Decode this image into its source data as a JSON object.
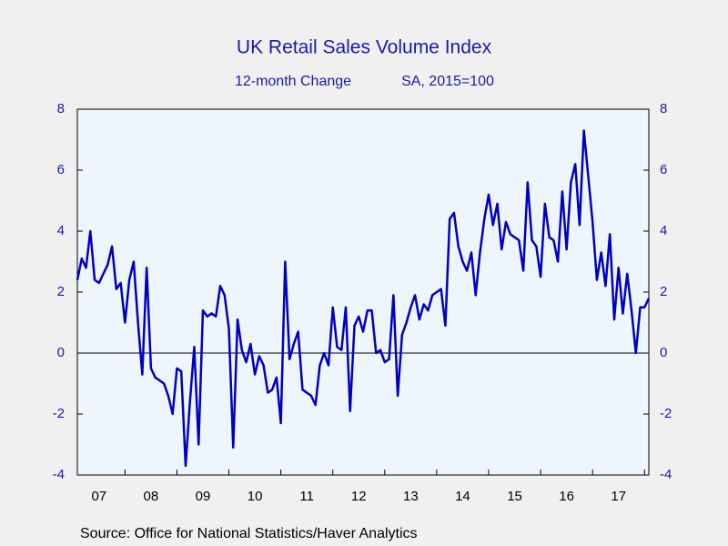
{
  "chart_data": {
    "type": "line",
    "title": "UK Retail Sales Volume Index",
    "subtitle": [
      "12-month Change",
      "SA, 2015=100"
    ],
    "source": "Source:  Office for National Statistics/Haver Analytics",
    "x": [
      2007.083,
      2007.167,
      2007.25,
      2007.333,
      2007.417,
      2007.5,
      2007.583,
      2007.667,
      2007.75,
      2007.833,
      2007.917,
      2008.0,
      2008.083,
      2008.167,
      2008.25,
      2008.333,
      2008.417,
      2008.5,
      2008.583,
      2008.667,
      2008.75,
      2008.833,
      2008.917,
      2009.0,
      2009.083,
      2009.167,
      2009.25,
      2009.333,
      2009.417,
      2009.5,
      2009.583,
      2009.667,
      2009.75,
      2009.833,
      2009.917,
      2010.0,
      2010.083,
      2010.167,
      2010.25,
      2010.333,
      2010.417,
      2010.5,
      2010.583,
      2010.667,
      2010.75,
      2010.833,
      2010.917,
      2011.0,
      2011.083,
      2011.167,
      2011.25,
      2011.333,
      2011.417,
      2011.5,
      2011.583,
      2011.667,
      2011.75,
      2011.833,
      2011.917,
      2012.0,
      2012.083,
      2012.167,
      2012.25,
      2012.333,
      2012.417,
      2012.5,
      2012.583,
      2012.667,
      2012.75,
      2012.833,
      2012.917,
      2013.0,
      2013.083,
      2013.167,
      2013.25,
      2013.333,
      2013.417,
      2013.5,
      2013.583,
      2013.667,
      2013.75,
      2013.833,
      2013.917,
      2014.0,
      2014.083,
      2014.167,
      2014.25,
      2014.333,
      2014.417,
      2014.5,
      2014.583,
      2014.667,
      2014.75,
      2014.833,
      2014.917,
      2015.0,
      2015.083,
      2015.167,
      2015.25,
      2015.333,
      2015.417,
      2015.5,
      2015.583,
      2015.667,
      2015.75,
      2015.833,
      2015.917,
      2016.0,
      2016.083,
      2016.167,
      2016.25,
      2016.333,
      2016.417,
      2016.5,
      2016.583,
      2016.667,
      2016.75,
      2016.833,
      2016.917,
      2017.0,
      2017.083,
      2017.167,
      2017.25,
      2017.333,
      2017.417,
      2017.5,
      2017.583,
      2017.667,
      2017.75,
      2017.833,
      2017.917,
      2018.0,
      2018.083
    ],
    "series": [
      {
        "name": "UK Retail Sales Volume Index",
        "color": "#0000c0",
        "values": [
          2.4,
          3.1,
          2.8,
          4.0,
          2.4,
          2.3,
          2.6,
          2.9,
          3.5,
          2.1,
          2.3,
          1.0,
          2.4,
          3.0,
          1.0,
          -0.7,
          2.8,
          -0.5,
          -0.8,
          -0.9,
          -1.0,
          -1.4,
          -2.0,
          -0.5,
          -0.6,
          -3.7,
          -1.6,
          0.2,
          -3.0,
          1.4,
          1.2,
          1.3,
          1.2,
          2.2,
          1.9,
          0.8,
          -3.1,
          1.1,
          0.1,
          -0.3,
          0.3,
          -0.7,
          -0.1,
          -0.4,
          -1.3,
          -1.2,
          -0.8,
          -2.3,
          3.0,
          -0.2,
          0.3,
          0.7,
          -1.2,
          -1.3,
          -1.4,
          -1.7,
          -0.4,
          0.0,
          -0.4,
          1.5,
          0.2,
          0.1,
          1.5,
          -1.9,
          0.9,
          1.2,
          0.7,
          1.4,
          1.4,
          0.0,
          0.1,
          -0.3,
          -0.2,
          1.9,
          -1.4,
          0.6,
          1.0,
          1.5,
          1.9,
          1.1,
          1.6,
          1.4,
          1.9,
          2.0,
          2.1,
          0.9,
          4.4,
          4.6,
          3.5,
          3.0,
          2.7,
          3.3,
          1.9,
          3.3,
          4.4,
          5.2,
          4.2,
          4.9,
          3.4,
          4.3,
          3.9,
          3.8,
          3.7,
          2.7,
          5.6,
          3.7,
          3.5,
          2.5,
          4.9,
          3.8,
          3.7,
          3.0,
          5.3,
          3.4,
          5.6,
          6.2,
          4.2,
          7.3,
          5.8,
          4.3,
          2.4,
          3.3,
          2.2,
          3.9,
          1.1,
          2.8,
          1.3,
          2.6,
          1.4,
          0.0,
          1.5,
          1.5,
          1.8
        ]
      }
    ],
    "xlim": [
      2007.083,
      2018.083
    ],
    "xticks": [
      {
        "value": 2007.5,
        "label": "07"
      },
      {
        "value": 2008.5,
        "label": "08"
      },
      {
        "value": 2009.5,
        "label": "09"
      },
      {
        "value": 2010.5,
        "label": "10"
      },
      {
        "value": 2011.5,
        "label": "11"
      },
      {
        "value": 2012.5,
        "label": "12"
      },
      {
        "value": 2013.5,
        "label": "13"
      },
      {
        "value": 2014.5,
        "label": "14"
      },
      {
        "value": 2015.5,
        "label": "15"
      },
      {
        "value": 2016.5,
        "label": "16"
      },
      {
        "value": 2017.5,
        "label": "17"
      }
    ],
    "xminor_ticks": [
      2008,
      2009,
      2010,
      2011,
      2012,
      2013,
      2014,
      2015,
      2016,
      2017,
      2018
    ],
    "ylim": [
      -4,
      8
    ],
    "yticks": [
      -4,
      -2,
      0,
      2,
      4,
      6,
      8
    ],
    "zero_line": true
  }
}
